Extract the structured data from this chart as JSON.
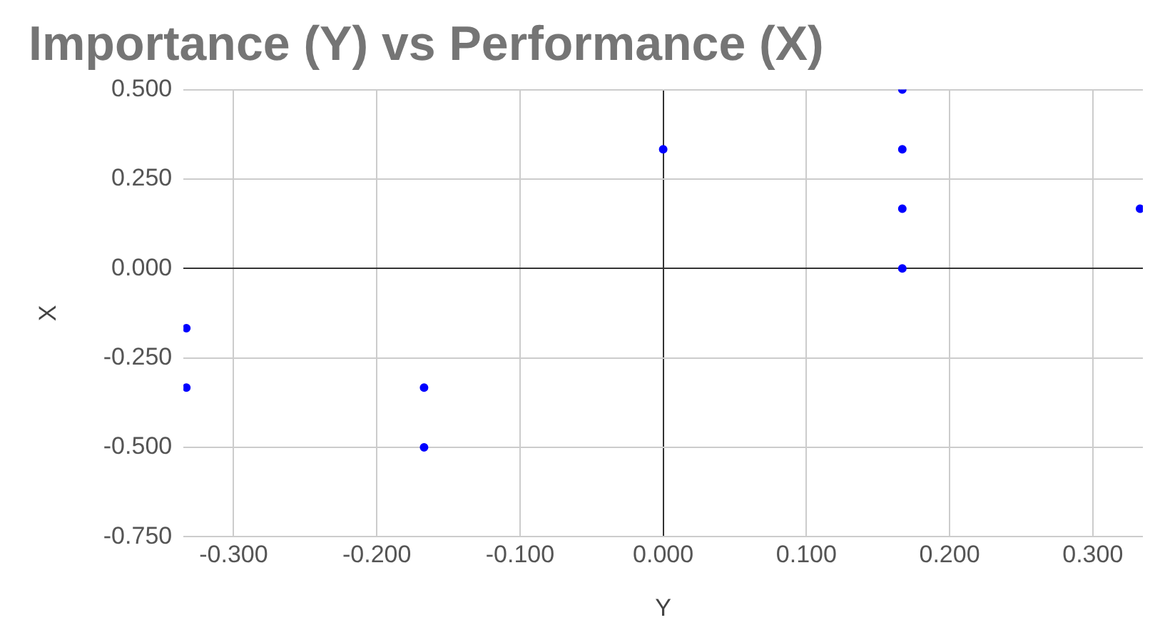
{
  "chart_data": {
    "type": "scatter",
    "title": "Importance (Y) vs Performance (X)",
    "xlabel": "Y",
    "ylabel": "X",
    "x": [
      -0.333,
      -0.333,
      -0.167,
      -0.167,
      0,
      0.167,
      0.167,
      0.167,
      0.167,
      0.333
    ],
    "series": [
      {
        "color": "#0000ff",
        "values": [
          -0.167,
          -0.333,
          -0.333,
          -0.5,
          0.333,
          0.5,
          0.333,
          0.167,
          0,
          0.167
        ]
      }
    ],
    "xlim": [
      -0.335,
      0.335
    ],
    "xticks": [
      {
        "value": -0.3,
        "label": "-0.300"
      },
      {
        "value": -0.2,
        "label": "-0.200"
      },
      {
        "value": -0.1,
        "label": "-0.100"
      },
      {
        "value": 0,
        "label": "0.000"
      },
      {
        "value": 0.1,
        "label": "0.100"
      },
      {
        "value": 0.2,
        "label": "0.200"
      },
      {
        "value": 0.3,
        "label": "0.300"
      }
    ],
    "ylim": [
      -0.75,
      0.5
    ],
    "yticks": [
      {
        "value": -0.75,
        "label": "-0.750"
      },
      {
        "value": -0.5,
        "label": "-0.500"
      },
      {
        "value": -0.25,
        "label": "-0.250"
      },
      {
        "value": 0,
        "label": "0.000"
      },
      {
        "value": 0.25,
        "label": "0.250"
      },
      {
        "value": 0.5,
        "label": "0.500"
      }
    ],
    "grid": true,
    "legend": false,
    "marker": "circle"
  }
}
